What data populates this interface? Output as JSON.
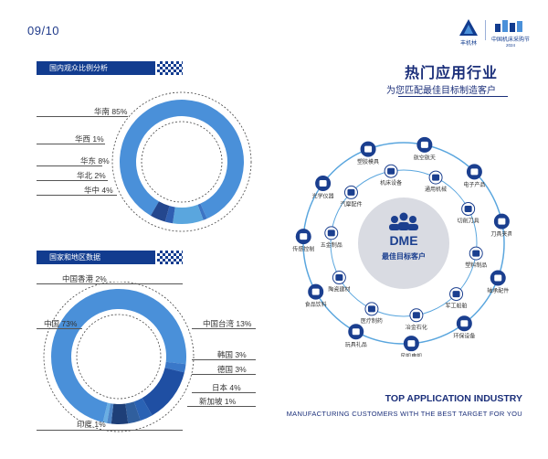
{
  "page": {
    "number": "09/10"
  },
  "brand": {
    "logo_left": "丰机林",
    "logo_right": "中国机床采购节",
    "logo_right_year": "2024"
  },
  "domestic": {
    "heading": "国内观众比例分析",
    "items": [
      {
        "label": "华南 85%",
        "value": 85,
        "color": "#4a90d9"
      },
      {
        "label": "华西 1%",
        "value": 1,
        "color": "#3c74c4"
      },
      {
        "label": "华东 8%",
        "value": 8,
        "color": "#5aa6de"
      },
      {
        "label": "华北 2%",
        "value": 2,
        "color": "#2f5fb2"
      },
      {
        "label": "华中 4%",
        "value": 4,
        "color": "#24478e"
      }
    ]
  },
  "regions": {
    "heading": "国家和地区数据",
    "items": [
      {
        "label": "中国 73%",
        "value": 73,
        "color": "#4a90d9"
      },
      {
        "label": "中国香港 2%",
        "value": 2,
        "color": "#3a78c9"
      },
      {
        "label": "中国台湾 13%",
        "value": 13,
        "color": "#1f4fa3"
      },
      {
        "label": "韩国 3%",
        "value": 3,
        "color": "#2a62b4"
      },
      {
        "label": "德国 3%",
        "value": 3,
        "color": "#305f9e"
      },
      {
        "label": "日本 4%",
        "value": 4,
        "color": "#1e3f78"
      },
      {
        "label": "新加坡 1%",
        "value": 1,
        "color": "#4f86c8"
      },
      {
        "label": "印度 1%",
        "value": 1,
        "color": "#6aaee3"
      }
    ]
  },
  "industries": {
    "title": "热门应用行业",
    "subtitle": "为您匹配最佳目标制造客户",
    "center_brand": "DME",
    "center_label": "最佳目标客户",
    "outer": [
      "航空航天",
      "电子产品",
      "刀具夹具",
      "轴承配件",
      "环保设备",
      "风机电机",
      "玩具礼品",
      "食品饮料",
      "传感控制",
      "光学仪器",
      "塑胶模具"
    ],
    "inner": [
      "机床设备",
      "通用机械",
      "切削刀具",
      "塑料制品",
      "军工船舶",
      "冶金石化",
      "医疗制药",
      "陶瓷建材",
      "五金制品",
      "汽摩配件"
    ],
    "en_title": "TOP APPLICATION INDUSTRY",
    "en_subtitle": "MANUFACTURING CUSTOMERS WITH THE BEST TARGET FOR YOU"
  }
}
